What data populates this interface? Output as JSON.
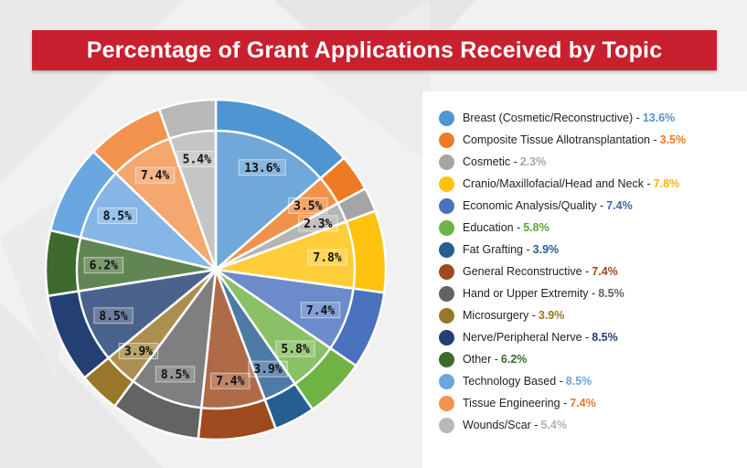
{
  "title": "Percentage of Grant Applications Received by Topic",
  "chart_data": {
    "type": "pie",
    "title": "Percentage of Grant Applications Received by Topic",
    "legend_position": "right",
    "slices": [
      {
        "name": "Breast (Cosmetic/Reconstructive)",
        "value": 13.6,
        "label": "13.6%",
        "color": "#4f95d1",
        "text_color": "#4f95d1"
      },
      {
        "name": "Composite Tissue Allotransplantation",
        "value": 3.5,
        "label": "3.5%",
        "color": "#ee7a25",
        "text_color": "#ee7a25"
      },
      {
        "name": "Cosmetic",
        "value": 2.3,
        "label": "2.3%",
        "color": "#a5a5a5",
        "text_color": "#a5a5a5"
      },
      {
        "name": "Cranio/Maxillofacial/Head and Neck",
        "value": 7.8,
        "label": "7.8%",
        "color": "#ffc20e",
        "text_color": "#f2b705"
      },
      {
        "name": "Economic Analysis/Quality",
        "value": 7.4,
        "label": "7.4%",
        "color": "#4a72bf",
        "text_color": "#3f66b3"
      },
      {
        "name": "Education",
        "value": 5.8,
        "label": "5.8%",
        "color": "#70b345",
        "text_color": "#5ea636"
      },
      {
        "name": "Fat Grafting",
        "value": 3.9,
        "label": "3.9%",
        "color": "#265e91",
        "text_color": "#265e91"
      },
      {
        "name": "General Reconstructive",
        "value": 7.4,
        "label": "7.4%",
        "color": "#9e4a1e",
        "text_color": "#9e4a1e"
      },
      {
        "name": "Hand or Upper Extremity",
        "value": 8.5,
        "label": "8.5%",
        "color": "#636363",
        "text_color": "#636363"
      },
      {
        "name": "Microsurgery",
        "value": 3.9,
        "label": "3.9%",
        "color": "#98772a",
        "text_color": "#98772a"
      },
      {
        "name": "Nerve/Peripheral Nerve",
        "value": 8.5,
        "label": "8.5%",
        "color": "#243f73",
        "text_color": "#243f73"
      },
      {
        "name": "Other",
        "value": 6.2,
        "label": "6.2%",
        "color": "#3e6b2d",
        "text_color": "#3e6b2d"
      },
      {
        "name": "Technology Based",
        "value": 8.5,
        "label": "8.5%",
        "color": "#6aa6df",
        "text_color": "#6aa6df"
      },
      {
        "name": "Tissue Engineering",
        "value": 7.4,
        "label": "7.4%",
        "color": "#f2944f",
        "text_color": "#ee7a25"
      },
      {
        "name": "Wounds/Scar",
        "value": 5.4,
        "label": "5.4%",
        "color": "#b8b8b8",
        "text_color": "#b0b0b0"
      }
    ]
  }
}
